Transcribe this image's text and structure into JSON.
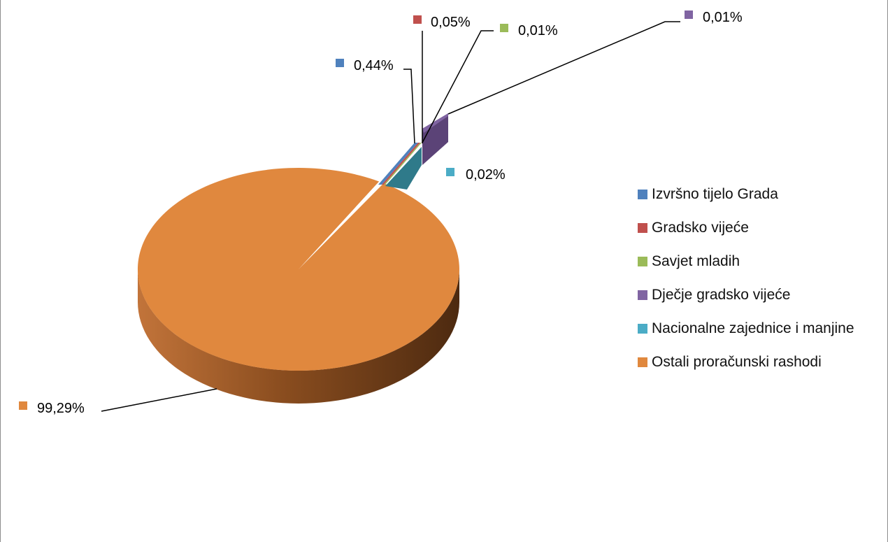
{
  "chart_data": {
    "type": "pie",
    "style": "3d-exploded",
    "legend_position": "right",
    "series": [
      {
        "name": "Izvršno tijelo Grada",
        "value": 0.44,
        "label": "0,44%",
        "color": "#4f81bd"
      },
      {
        "name": "Gradsko vijeće",
        "value": 0.05,
        "label": "0,05%",
        "color": "#c0504d"
      },
      {
        "name": "Savjet mladih",
        "value": 0.01,
        "label": "0,01%",
        "color": "#9bbb59"
      },
      {
        "name": "Dječje gradsko vijeće",
        "value": 0.01,
        "label": "0,01%",
        "color": "#8064a2"
      },
      {
        "name": "Nacionalne zajednice i manjine",
        "value": 0.02,
        "label": "0,02%",
        "color": "#4bacc6"
      },
      {
        "name": "Ostali proračunski rashodi",
        "value": 99.29,
        "label": "99,29%",
        "color": "#e0883e"
      }
    ]
  }
}
